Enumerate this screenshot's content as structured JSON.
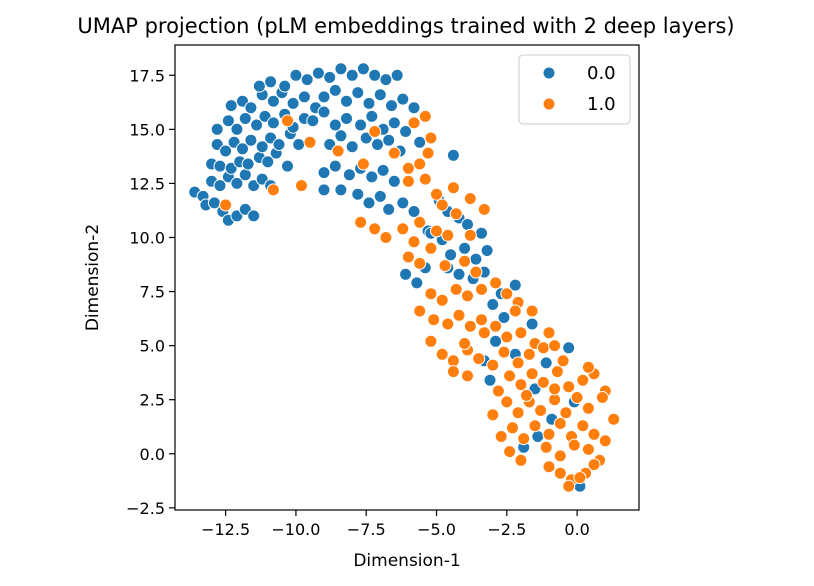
{
  "chart_data": {
    "type": "scatter",
    "title": "UMAP projection (pLM embeddings trained with 2 deep layers)",
    "xlabel": "Dimension-1",
    "ylabel": "Dimension-2",
    "xlim": [
      -14.3,
      2.2
    ],
    "ylim": [
      -2.6,
      18.9
    ],
    "xticks": [
      -12.5,
      -10.0,
      -7.5,
      -5.0,
      -2.5,
      0.0
    ],
    "xtick_labels": [
      "−12.5",
      "−10.0",
      "−7.5",
      "−5.0",
      "−2.5",
      "0.0"
    ],
    "yticks": [
      -2.5,
      0.0,
      2.5,
      5.0,
      7.5,
      10.0,
      12.5,
      15.0,
      17.5
    ],
    "ytick_labels": [
      "−2.5",
      "0.0",
      "2.5",
      "5.0",
      "7.5",
      "10.0",
      "12.5",
      "15.0",
      "17.5"
    ],
    "grid": false,
    "legend_position": "top-right",
    "series": [
      {
        "name": "0.0",
        "color": "#1f77b4",
        "points": [
          [
            -13.6,
            12.1
          ],
          [
            -13.3,
            11.9
          ],
          [
            -13.2,
            11.5
          ],
          [
            -12.9,
            11.6
          ],
          [
            -12.6,
            11.2
          ],
          [
            -12.4,
            10.8
          ],
          [
            -12.1,
            11.0
          ],
          [
            -11.8,
            11.3
          ],
          [
            -11.5,
            11.0
          ],
          [
            -13.0,
            12.6
          ],
          [
            -12.7,
            12.4
          ],
          [
            -12.4,
            12.8
          ],
          [
            -12.1,
            12.5
          ],
          [
            -11.8,
            12.9
          ],
          [
            -11.5,
            12.4
          ],
          [
            -11.2,
            12.7
          ],
          [
            -10.9,
            12.4
          ],
          [
            -13.0,
            13.4
          ],
          [
            -12.7,
            13.3
          ],
          [
            -12.3,
            13.2
          ],
          [
            -12.0,
            13.5
          ],
          [
            -11.7,
            13.4
          ],
          [
            -11.3,
            13.7
          ],
          [
            -11.0,
            13.5
          ],
          [
            -10.7,
            13.9
          ],
          [
            -10.3,
            13.3
          ],
          [
            -12.8,
            14.3
          ],
          [
            -12.5,
            14.0
          ],
          [
            -12.2,
            14.4
          ],
          [
            -11.9,
            14.1
          ],
          [
            -11.6,
            14.5
          ],
          [
            -11.2,
            14.2
          ],
          [
            -10.9,
            14.6
          ],
          [
            -10.6,
            14.3
          ],
          [
            -10.2,
            14.8
          ],
          [
            -9.9,
            14.3
          ],
          [
            -12.8,
            15.0
          ],
          [
            -12.4,
            15.4
          ],
          [
            -12.1,
            15.0
          ],
          [
            -11.8,
            15.5
          ],
          [
            -11.4,
            15.2
          ],
          [
            -11.1,
            15.6
          ],
          [
            -10.8,
            15.3
          ],
          [
            -10.4,
            15.7
          ],
          [
            -10.1,
            15.1
          ],
          [
            -9.7,
            15.5
          ],
          [
            -12.3,
            16.1
          ],
          [
            -11.9,
            16.3
          ],
          [
            -11.6,
            16.0
          ],
          [
            -11.2,
            16.6
          ],
          [
            -10.8,
            16.3
          ],
          [
            -10.5,
            16.7
          ],
          [
            -10.1,
            16.2
          ],
          [
            -9.7,
            16.5
          ],
          [
            -9.3,
            16.0
          ],
          [
            -11.3,
            17.0
          ],
          [
            -10.9,
            17.2
          ],
          [
            -10.4,
            17.0
          ],
          [
            -10.0,
            17.5
          ],
          [
            -9.6,
            17.3
          ],
          [
            -9.2,
            17.6
          ],
          [
            -8.8,
            17.4
          ],
          [
            -8.4,
            17.8
          ],
          [
            -8.0,
            17.5
          ],
          [
            -7.6,
            17.8
          ],
          [
            -7.2,
            17.5
          ],
          [
            -6.8,
            17.3
          ],
          [
            -9.0,
            16.5
          ],
          [
            -8.6,
            16.8
          ],
          [
            -8.2,
            16.3
          ],
          [
            -7.8,
            16.7
          ],
          [
            -7.4,
            16.2
          ],
          [
            -7.0,
            16.6
          ],
          [
            -6.6,
            16.1
          ],
          [
            -6.2,
            16.4
          ],
          [
            -9.4,
            15.4
          ],
          [
            -9.0,
            15.8
          ],
          [
            -8.6,
            15.2
          ],
          [
            -8.2,
            15.5
          ],
          [
            -7.7,
            15.2
          ],
          [
            -7.3,
            15.6
          ],
          [
            -6.9,
            15.0
          ],
          [
            -6.5,
            15.3
          ],
          [
            -6.1,
            14.9
          ],
          [
            -8.8,
            14.3
          ],
          [
            -8.4,
            14.7
          ],
          [
            -8.0,
            14.2
          ],
          [
            -7.5,
            14.6
          ],
          [
            -7.1,
            14.3
          ],
          [
            -6.7,
            14.5
          ],
          [
            -6.3,
            14.0
          ],
          [
            -9.0,
            13.0
          ],
          [
            -8.6,
            13.3
          ],
          [
            -8.1,
            12.9
          ],
          [
            -7.7,
            13.2
          ],
          [
            -7.3,
            12.8
          ],
          [
            -6.9,
            13.1
          ],
          [
            -6.5,
            12.6
          ],
          [
            -9.0,
            12.2
          ],
          [
            -8.4,
            12.2
          ],
          [
            -7.8,
            12.0
          ],
          [
            -7.4,
            11.6
          ],
          [
            -7.0,
            11.9
          ],
          [
            -6.7,
            11.3
          ],
          [
            -6.2,
            11.6
          ],
          [
            -5.8,
            11.2
          ],
          [
            -4.9,
            11.7
          ],
          [
            -4.6,
            11.2
          ],
          [
            -4.2,
            10.9
          ],
          [
            -3.9,
            10.6
          ],
          [
            -5.3,
            10.3
          ],
          [
            -4.8,
            9.9
          ],
          [
            -3.4,
            10.2
          ],
          [
            -4.5,
            9.2
          ],
          [
            -4.0,
            9.5
          ],
          [
            -3.6,
            9.0
          ],
          [
            -3.2,
            9.4
          ],
          [
            -4.6,
            8.6
          ],
          [
            -4.2,
            8.3
          ],
          [
            -3.7,
            8.1
          ],
          [
            -3.3,
            8.4
          ],
          [
            -6.1,
            8.3
          ],
          [
            -5.7,
            7.9
          ],
          [
            -5.4,
            8.6
          ],
          [
            -5.2,
            10.2
          ],
          [
            -3.0,
            6.9
          ],
          [
            -2.6,
            6.3
          ],
          [
            -2.9,
            5.2
          ],
          [
            -3.3,
            4.3
          ],
          [
            -3.1,
            3.4
          ],
          [
            -2.2,
            4.6
          ],
          [
            -1.6,
            6.0
          ],
          [
            -1.1,
            4.2
          ],
          [
            -1.5,
            3.0
          ],
          [
            -0.9,
            1.6
          ],
          [
            -1.4,
            0.8
          ],
          [
            -1.9,
            0.3
          ],
          [
            -0.3,
            4.9
          ],
          [
            -0.1,
            2.4
          ],
          [
            0.1,
            -1.5
          ],
          [
            -2.7,
            7.4
          ],
          [
            -2.2,
            7.8
          ],
          [
            -4.4,
            13.8
          ],
          [
            -5.6,
            14.4
          ],
          [
            -6.4,
            17.5
          ],
          [
            -5.8,
            16.0
          ]
        ]
      },
      {
        "name": "1.0",
        "color": "#ff7f0e",
        "points": [
          [
            -12.5,
            11.5
          ],
          [
            -10.8,
            12.2
          ],
          [
            -9.8,
            12.4
          ],
          [
            -10.3,
            15.4
          ],
          [
            -9.5,
            14.4
          ],
          [
            -8.5,
            14.0
          ],
          [
            -7.6,
            13.4
          ],
          [
            -7.2,
            14.9
          ],
          [
            -6.5,
            13.9
          ],
          [
            -6.0,
            13.2
          ],
          [
            -5.6,
            13.4
          ],
          [
            -5.3,
            13.9
          ],
          [
            -5.2,
            14.6
          ],
          [
            -5.8,
            15.3
          ],
          [
            -5.4,
            15.6
          ],
          [
            -6.0,
            12.6
          ],
          [
            -5.4,
            12.7
          ],
          [
            -5.0,
            12.0
          ],
          [
            -4.4,
            12.3
          ],
          [
            -4.8,
            11.5
          ],
          [
            -4.3,
            11.1
          ],
          [
            -3.8,
            11.8
          ],
          [
            -3.3,
            11.3
          ],
          [
            -5.6,
            10.7
          ],
          [
            -5.0,
            10.3
          ],
          [
            -4.6,
            10.1
          ],
          [
            -3.8,
            10.1
          ],
          [
            -7.7,
            10.7
          ],
          [
            -7.2,
            10.4
          ],
          [
            -6.8,
            10.0
          ],
          [
            -6.2,
            10.4
          ],
          [
            -5.8,
            9.8
          ],
          [
            -5.2,
            9.5
          ],
          [
            -6.0,
            9.1
          ],
          [
            -5.6,
            8.8
          ],
          [
            -4.7,
            8.7
          ],
          [
            -4.0,
            8.9
          ],
          [
            -5.2,
            7.4
          ],
          [
            -4.8,
            7.1
          ],
          [
            -4.3,
            7.6
          ],
          [
            -3.9,
            7.3
          ],
          [
            -3.4,
            7.6
          ],
          [
            -2.9,
            7.9
          ],
          [
            -2.5,
            7.4
          ],
          [
            -2.1,
            7.0
          ],
          [
            -1.6,
            6.6
          ],
          [
            -5.6,
            6.6
          ],
          [
            -5.1,
            6.2
          ],
          [
            -4.6,
            6.0
          ],
          [
            -4.2,
            6.4
          ],
          [
            -3.8,
            5.9
          ],
          [
            -3.3,
            5.6
          ],
          [
            -2.9,
            5.9
          ],
          [
            -2.5,
            5.4
          ],
          [
            -2.0,
            5.6
          ],
          [
            -1.5,
            5.1
          ],
          [
            -5.2,
            5.2
          ],
          [
            -4.8,
            4.6
          ],
          [
            -4.4,
            4.3
          ],
          [
            -3.9,
            4.8
          ],
          [
            -3.5,
            4.4
          ],
          [
            -3.0,
            4.1
          ],
          [
            -2.6,
            4.7
          ],
          [
            -2.1,
            4.2
          ],
          [
            -1.7,
            4.6
          ],
          [
            -1.2,
            4.9
          ],
          [
            -0.8,
            5.0
          ],
          [
            -4.4,
            3.8
          ],
          [
            -3.9,
            3.6
          ],
          [
            -2.4,
            3.6
          ],
          [
            -2.0,
            3.2
          ],
          [
            -1.6,
            3.7
          ],
          [
            -1.2,
            3.3
          ],
          [
            -0.7,
            3.8
          ],
          [
            -0.3,
            3.1
          ],
          [
            0.2,
            3.4
          ],
          [
            0.6,
            3.7
          ],
          [
            1.0,
            2.9
          ],
          [
            -3.0,
            1.8
          ],
          [
            -2.5,
            2.4
          ],
          [
            -2.1,
            1.9
          ],
          [
            -1.7,
            2.4
          ],
          [
            -1.3,
            2.0
          ],
          [
            -0.8,
            2.5
          ],
          [
            -0.4,
            1.9
          ],
          [
            0.0,
            2.6
          ],
          [
            0.4,
            2.1
          ],
          [
            0.9,
            2.6
          ],
          [
            1.3,
            1.6
          ],
          [
            -2.7,
            0.8
          ],
          [
            -2.3,
            1.2
          ],
          [
            -1.9,
            0.7
          ],
          [
            -1.5,
            1.3
          ],
          [
            -1.0,
            0.9
          ],
          [
            -0.6,
            1.4
          ],
          [
            -0.2,
            0.8
          ],
          [
            0.2,
            1.3
          ],
          [
            0.6,
            0.9
          ],
          [
            1.0,
            0.6
          ],
          [
            -2.4,
            0.1
          ],
          [
            -2.0,
            -0.3
          ],
          [
            -1.1,
            0.3
          ],
          [
            -0.6,
            -0.1
          ],
          [
            -0.1,
            0.4
          ],
          [
            0.4,
            0.2
          ],
          [
            0.8,
            -0.3
          ],
          [
            -1.0,
            -0.6
          ],
          [
            -0.6,
            -0.9
          ],
          [
            -0.2,
            -1.2
          ],
          [
            0.3,
            -0.9
          ],
          [
            0.6,
            -0.5
          ],
          [
            -0.3,
            -1.5
          ],
          [
            0.1,
            -1.1
          ],
          [
            -0.8,
            3.0
          ],
          [
            -1.8,
            2.7
          ],
          [
            -2.8,
            2.9
          ],
          [
            -0.5,
            4.3
          ],
          [
            0.4,
            4.0
          ],
          [
            -3.4,
            6.2
          ],
          [
            -4.0,
            5.1
          ],
          [
            -2.2,
            6.6
          ],
          [
            -1.0,
            5.6
          ],
          [
            -3.6,
            8.4
          ]
        ]
      }
    ]
  }
}
